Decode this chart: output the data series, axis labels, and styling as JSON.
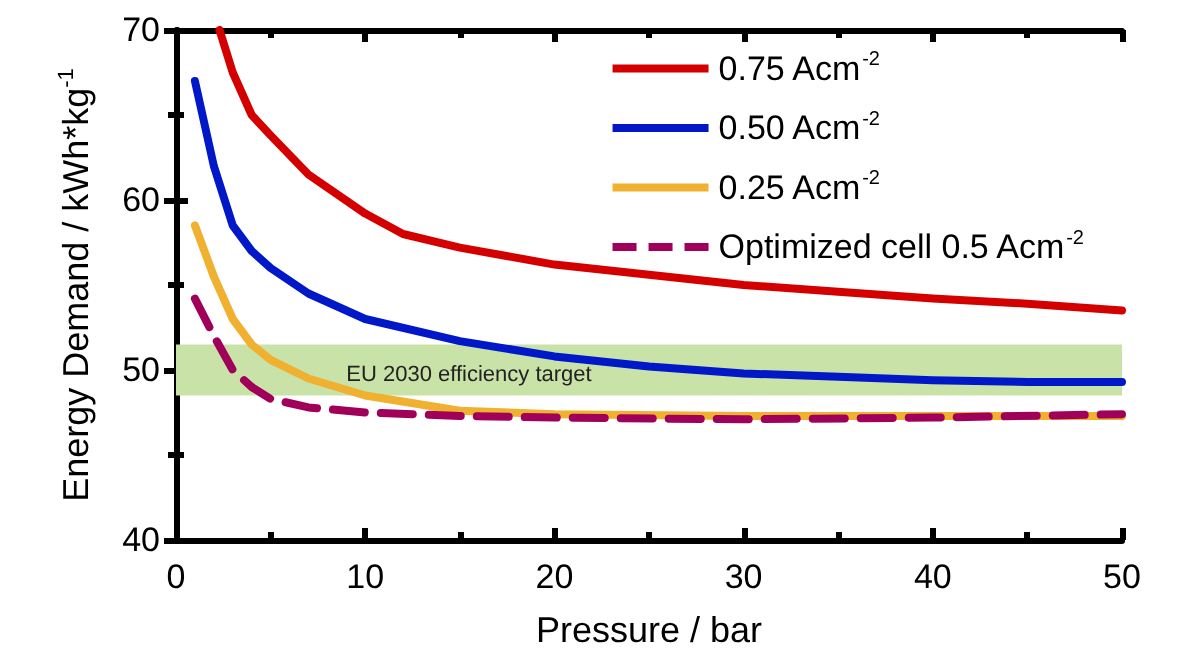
{
  "chart_data": {
    "type": "line",
    "xlabel": "Pressure / bar",
    "ylabel": "Energy Demand / kWh*kg$^{-1}$",
    "xlim": [
      0,
      50
    ],
    "xticks": [
      0,
      10,
      20,
      30,
      40,
      50
    ],
    "ylim": [
      40,
      70
    ],
    "yticks": [
      40,
      50,
      60,
      70
    ],
    "grid": false,
    "legend": "top right",
    "marker": "none",
    "series": [
      {
        "name": "0.75 Acm$^{-2}$",
        "color": "#d40000",
        "x": [
          2.3,
          3,
          4,
          5,
          7,
          10,
          12,
          15,
          20,
          25,
          30,
          35,
          40,
          45,
          50
        ],
        "values": [
          70,
          67.5,
          65,
          63.8,
          61.5,
          59.2,
          58,
          57.2,
          56.2,
          55.6,
          55,
          54.6,
          54.2,
          53.9,
          53.5
        ]
      },
      {
        "name": "0.50 Acm$^{-2}$",
        "color": "#0018c8",
        "x": [
          1,
          2,
          3,
          4,
          5,
          7,
          10,
          15,
          20,
          25,
          30,
          35,
          40,
          45,
          50
        ],
        "values": [
          67,
          62,
          58.5,
          57,
          56,
          54.5,
          53,
          51.7,
          50.8,
          50.2,
          49.8,
          49.6,
          49.4,
          49.3,
          49.3
        ]
      },
      {
        "name": "0.25 Acm$^{-2}$",
        "color": "#f0b030",
        "x": [
          1,
          2,
          3,
          4,
          5,
          7,
          10,
          15,
          20,
          30,
          40,
          50
        ],
        "values": [
          58.5,
          55.5,
          53,
          51.5,
          50.6,
          49.5,
          48.5,
          47.6,
          47.4,
          47.3,
          47.3,
          47.3
        ]
      },
      {
        "name": "Optimized cell 0.5 Acm$^{-2}$",
        "color": "#a0005a",
        "line_style": "dashed",
        "x": [
          1,
          2,
          3,
          4,
          5,
          7,
          10,
          15,
          20,
          30,
          40,
          50
        ],
        "values": [
          54.2,
          52,
          50,
          49,
          48.3,
          47.8,
          47.5,
          47.3,
          47.2,
          47.1,
          47.2,
          47.4
        ]
      }
    ],
    "bands": [
      {
        "axis": "y",
        "from": 48.5,
        "to": 51.5,
        "label": "EU 2030 efficiency target",
        "color": "#c8e2a8"
      }
    ]
  }
}
